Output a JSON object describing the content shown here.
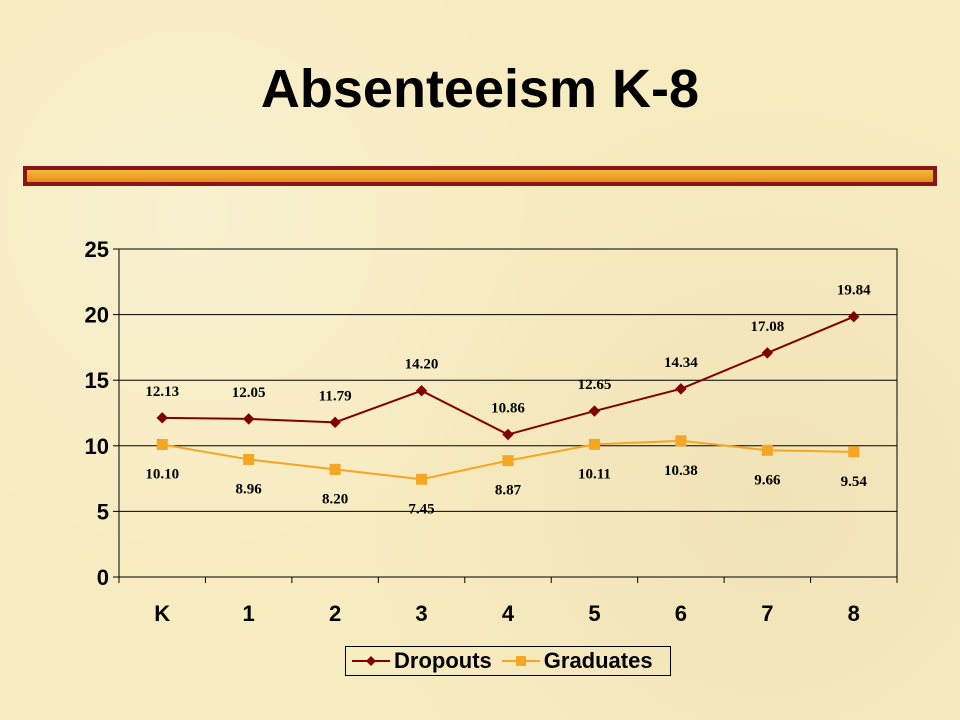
{
  "slide": {
    "title": "Absenteeism K-8"
  },
  "colors": {
    "background": "#f7ebc0",
    "dropouts": "#800000",
    "graduates": "#f5a623",
    "bar_border": "#8b1414",
    "bar_fill": "#eea128"
  },
  "chart_data": {
    "type": "line",
    "title": "",
    "xlabel": "",
    "ylabel": "",
    "categories": [
      "K",
      "1",
      "2",
      "3",
      "4",
      "5",
      "6",
      "7",
      "8"
    ],
    "ylim": [
      0,
      25
    ],
    "yticks": [
      0,
      5,
      10,
      15,
      20,
      25
    ],
    "grid": true,
    "legend_position": "bottom",
    "series": [
      {
        "name": "Dropouts",
        "marker": "diamond",
        "values": [
          12.13,
          12.05,
          11.79,
          14.2,
          10.86,
          12.65,
          14.34,
          17.08,
          19.84
        ],
        "labels": [
          "12.13",
          "12.05",
          "11.79",
          "14.20",
          "10.86",
          "12.65",
          "14.34",
          "17.08",
          "19.84"
        ]
      },
      {
        "name": "Graduates",
        "marker": "square",
        "values": [
          10.1,
          8.96,
          8.2,
          7.45,
          8.87,
          10.11,
          10.38,
          9.66,
          9.54
        ],
        "labels": [
          "10.10",
          "8.96",
          "8.20",
          "7.45",
          "8.87",
          "10.11",
          "10.38",
          "9.66",
          "9.54"
        ]
      }
    ]
  }
}
